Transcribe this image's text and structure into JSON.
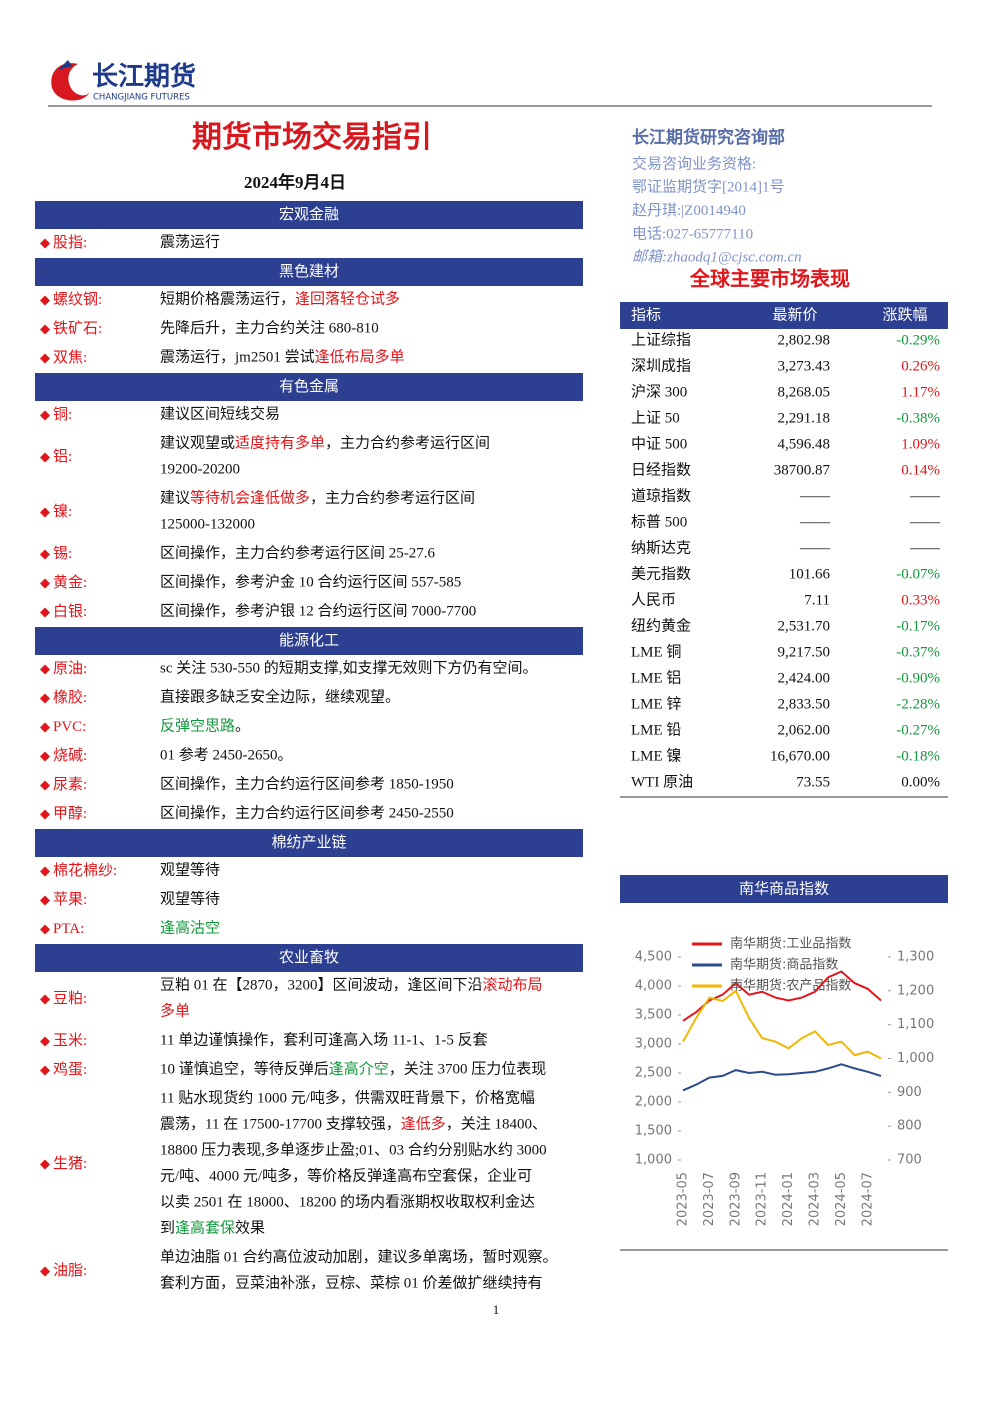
{
  "header": {
    "logo_cn": "长江期货",
    "logo_en": "CHANGJIANG FUTURES"
  },
  "title": "期货市场交易指引",
  "date": "2024年9月4日",
  "sections": [
    {
      "name": "宏观金融",
      "items": [
        {
          "label": "股指:",
          "lines": [
            [
              "震荡运行"
            ]
          ]
        }
      ]
    },
    {
      "name": "黑色建材",
      "items": [
        {
          "label": "螺纹钢:",
          "lines": [
            [
              "短期价格震荡运行，",
              {
                "text": "逢回落轻仓试多",
                "color": "red"
              }
            ]
          ]
        },
        {
          "label": "铁矿石:",
          "lines": [
            [
              "先降后升，主力合约关注 680-810"
            ]
          ]
        },
        {
          "label": "双焦:",
          "lines": [
            [
              "震荡运行，jm2501 尝试",
              {
                "text": "逢低布局多单",
                "color": "red"
              }
            ]
          ]
        }
      ]
    },
    {
      "name": "有色金属",
      "items": [
        {
          "label": "铜:",
          "lines": [
            [
              "建议区间短线交易"
            ]
          ]
        },
        {
          "label": "铝:",
          "lines": [
            [
              "建议观望或",
              {
                "text": "适度持有多单",
                "color": "red"
              },
              "，主力合约参考运行区间"
            ],
            [
              "19200-20200"
            ]
          ]
        },
        {
          "label": "镍:",
          "lines": [
            [
              "建议",
              {
                "text": "等待机会逢低做多",
                "color": "red"
              },
              "，主力合约参考运行区间"
            ],
            [
              "125000-132000"
            ]
          ]
        },
        {
          "label": "锡:",
          "lines": [
            [
              "区间操作，主力合约参考运行区间 25-27.6"
            ]
          ]
        },
        {
          "label": "黄金:",
          "lines": [
            [
              "区间操作，参考沪金 10 合约运行区间 557-585"
            ]
          ]
        },
        {
          "label": "白银:",
          "lines": [
            [
              "区间操作，参考沪银 12 合约运行区间 7000-7700"
            ]
          ]
        }
      ]
    },
    {
      "name": "能源化工",
      "items": [
        {
          "label": "原油:",
          "lines": [
            [
              "sc 关注 530-550 的短期支撑,如支撑无效则下方仍有空间。"
            ]
          ]
        },
        {
          "label": "橡胶:",
          "lines": [
            [
              "直接跟多缺乏安全边际，继续观望。"
            ]
          ]
        },
        {
          "label": "PVC:",
          "lines": [
            [
              {
                "text": "反弹空思路",
                "color": "green"
              },
              "。"
            ]
          ]
        },
        {
          "label": "烧碱:",
          "lines": [
            [
              "01 参考 2450-2650。"
            ]
          ]
        },
        {
          "label": "尿素:",
          "lines": [
            [
              "区间操作，主力合约运行区间参考 1850-1950"
            ]
          ]
        },
        {
          "label": "甲醇:",
          "lines": [
            [
              "区间操作，主力合约运行区间参考 2450-2550"
            ]
          ]
        }
      ]
    },
    {
      "name": "棉纺产业链",
      "items": [
        {
          "label": "棉花棉纱:",
          "lines": [
            [
              "观望等待"
            ]
          ]
        },
        {
          "label": "苹果:",
          "lines": [
            [
              "观望等待"
            ]
          ]
        },
        {
          "label": "PTA:",
          "lines": [
            [
              {
                "text": "逢高沽空",
                "color": "green"
              }
            ]
          ]
        }
      ]
    },
    {
      "name": "农业畜牧",
      "items": [
        {
          "label": "豆粕:",
          "lines": [
            [
              "豆粕 01 在【2870，3200】区间波动，逢区间下沿",
              {
                "text": "滚动布局",
                "color": "red"
              }
            ],
            [
              {
                "text": "多单",
                "color": "red"
              }
            ]
          ]
        },
        {
          "label": "玉米:",
          "lines": [
            [
              "11 单边谨慎操作，套利可逢高入场 11-1、1-5 反套"
            ]
          ]
        },
        {
          "label": "鸡蛋:",
          "lines": [
            [
              "10 谨慎追空，等待反弹后",
              {
                "text": "逢高介空",
                "color": "green"
              },
              "，关注 3700 压力位表现"
            ]
          ]
        },
        {
          "label": "生猪:",
          "lines": [
            [
              "11 贴水现货约 1000 元/吨多，供需双旺背景下，价格宽幅"
            ],
            [
              "震荡，11 在 17500-17700 支撑较强，",
              {
                "text": "逢低多",
                "color": "red"
              },
              "，关注 18400、"
            ],
            [
              "18800 压力表现,多单逐步止盈;01、03 合约分别贴水约 3000"
            ],
            [
              "元/吨、4000 元/吨多，等价格反弹逢高布空套保，企业可"
            ],
            [
              "以卖 2501 在 18000、18200 的场内看涨期权收取权利金达"
            ],
            [
              "到",
              {
                "text": "逢高套保",
                "color": "green"
              },
              "效果"
            ]
          ]
        },
        {
          "label": "油脂:",
          "lines": [
            [
              "单边油脂 01 合约高位波动加剧，建议多单离场，暂时观察。"
            ],
            [
              "套利方面，豆菜油补涨，豆棕、菜棕 01 价差做扩继续持有"
            ]
          ]
        }
      ]
    }
  ],
  "sidebar": {
    "dept": "长江期货研究咨询部",
    "lines": [
      "交易咨询业务资格:",
      "鄂证监期货字[2014]1号",
      "赵丹琪:|Z0014940",
      "电话:027-65777110",
      "邮箱:zhaodq1@cjsc.com.cn"
    ]
  },
  "market": {
    "title": "全球主要市场表现",
    "headers": [
      "指标",
      "最新价",
      "涨跌幅"
    ],
    "rows": [
      [
        "上证综指",
        "2,802.98",
        "-0.29%"
      ],
      [
        "深圳成指",
        "3,273.43",
        "0.26%"
      ],
      [
        "沪深 300",
        "8,268.05",
        "1.17%"
      ],
      [
        "上证 50",
        "2,291.18",
        "-0.38%"
      ],
      [
        "中证 500",
        "4,596.48",
        "1.09%"
      ],
      [
        "日经指数",
        "38700.87",
        "0.14%"
      ],
      [
        "道琼指数",
        "——",
        "——"
      ],
      [
        "标普 500",
        "——",
        "——"
      ],
      [
        "纳斯达克",
        "——",
        "——"
      ],
      [
        "美元指数",
        "101.66",
        "-0.07%"
      ],
      [
        "人民币",
        "7.11",
        "0.33%"
      ],
      [
        "纽约黄金",
        "2,531.70",
        "-0.17%"
      ],
      [
        "LME 铜",
        "9,217.50",
        "-0.37%"
      ],
      [
        "LME 铝",
        "2,424.00",
        "-0.90%"
      ],
      [
        "LME 锌",
        "2,833.50",
        "-2.28%"
      ],
      [
        "LME 铅",
        "2,062.00",
        "-0.27%"
      ],
      [
        "LME 镍",
        "16,670.00",
        "-0.18%"
      ],
      [
        "WTI 原油",
        "73.55",
        "0.00%"
      ]
    ]
  },
  "chart_data": {
    "type": "line",
    "title": "南华商品指数",
    "categories": [
      "2023-05",
      null,
      "2023-07",
      null,
      "2023-09",
      null,
      "2023-11",
      null,
      "2024-01",
      null,
      "2024-03",
      null,
      "2024-05",
      null,
      "2024-07",
      null
    ],
    "series": [
      {
        "name": "南华期货:工业品指数",
        "color": "#e0161b",
        "values": [
          3400,
          3550,
          3750,
          3850,
          4050,
          3850,
          3900,
          3800,
          3750,
          3800,
          3900,
          4150,
          4250,
          4050,
          3950,
          3750
        ]
      },
      {
        "name": "南华期货:商品指数",
        "color": "#2b4c8c",
        "values": [
          2200,
          2300,
          2420,
          2450,
          2550,
          2500,
          2520,
          2470,
          2480,
          2500,
          2520,
          2580,
          2650,
          2580,
          2520,
          2450
        ]
      },
      {
        "name": "南华期货:农产品指数",
        "color": "#f2b705",
        "axis": "y2",
        "values": [
          1050,
          1120,
          1180,
          1170,
          1200,
          1120,
          1060,
          1050,
          1030,
          1060,
          1080,
          1040,
          1050,
          1010,
          1020,
          1000
        ]
      }
    ],
    "ylim": [
      1000,
      4500
    ],
    "yticks": [
      {
        "value": 1000,
        "label": "1,000"
      },
      {
        "value": 1500,
        "label": "1,500"
      },
      {
        "value": 2000,
        "label": "2,000"
      },
      {
        "value": 2500,
        "label": "2,500"
      },
      {
        "value": 3000,
        "label": "3,000"
      },
      {
        "value": 3500,
        "label": "3,500"
      },
      {
        "value": 4000,
        "label": "4,000"
      },
      {
        "value": 4500,
        "label": "4,500"
      }
    ],
    "y2lim": [
      700,
      1300
    ],
    "y2ticks": [
      700,
      800,
      900,
      {
        "value": 1000,
        "label": "1,000"
      },
      {
        "value": 1100,
        "label": "1,100"
      },
      {
        "value": 1200,
        "label": "1,200"
      },
      {
        "value": 1300,
        "label": "1,300"
      }
    ]
  },
  "page_number": "1"
}
